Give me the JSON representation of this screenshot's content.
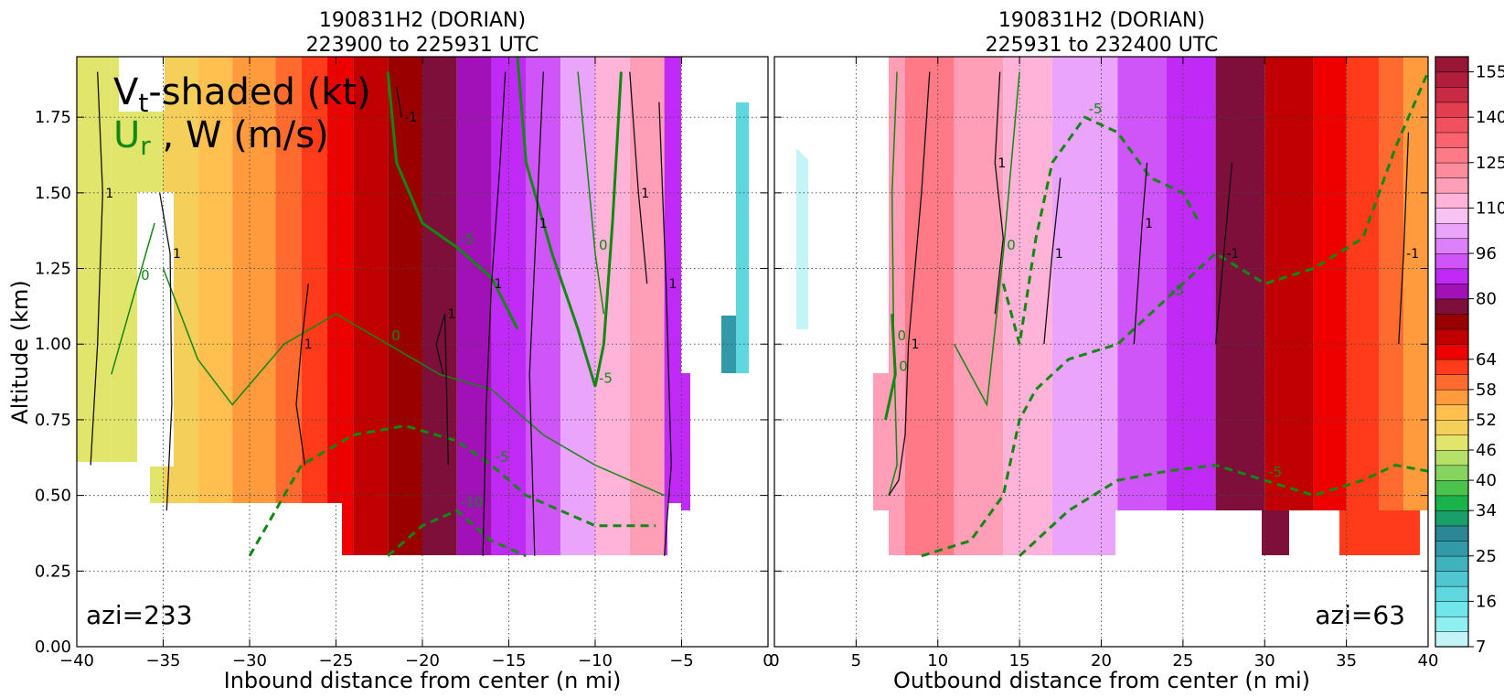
{
  "chart_data": [
    {
      "type": "heatmap",
      "panel": "left",
      "title_line1": "190831H2 (DORIAN)",
      "title_line2": "223900 to 225931 UTC",
      "xlabel": "Inbound distance from center (n mi)",
      "ylabel": "Altitude (km)",
      "xlim": [
        -40,
        0
      ],
      "ylim": [
        0,
        1.95
      ],
      "xticks": [
        "−40",
        "−35",
        "−30",
        "−25",
        "−20",
        "−15",
        "−10",
        "−5",
        "0"
      ],
      "xtick_values": [
        -40,
        -35,
        -30,
        -25,
        -20,
        -15,
        -10,
        -5,
        0
      ],
      "yticks": [
        "0.00",
        "0.25",
        "0.50",
        "0.75",
        "1.00",
        "1.25",
        "1.50",
        "1.75"
      ],
      "ytick_values": [
        0,
        0.25,
        0.5,
        0.75,
        1.0,
        1.25,
        1.5,
        1.75
      ],
      "grid": true,
      "legend_line1_main": "V",
      "legend_line1_sub": "t",
      "legend_line1_rest": "-shaded (kt)",
      "legend_line2_main": "U",
      "legend_line2_sub": "r",
      "legend_line2_rest": " , W (m/s)",
      "annotation": "azi=233",
      "vt_bands": [
        {
          "x0": -40,
          "x1": -38,
          "value": 46
        },
        {
          "x0": -38,
          "x1": -35,
          "value": 48
        },
        {
          "x0": -35,
          "x1": -33,
          "value": 50
        },
        {
          "x0": -33,
          "x1": -31,
          "value": 52
        },
        {
          "x0": -31,
          "x1": -28.5,
          "value": 55
        },
        {
          "x0": -28.5,
          "x1": -27,
          "value": 58
        },
        {
          "x0": -27,
          "x1": -25.5,
          "value": 61
        },
        {
          "x0": -25.5,
          "x1": -24,
          "value": 64
        },
        {
          "x0": -24,
          "x1": -22,
          "value": 68
        },
        {
          "x0": -22,
          "x1": -20,
          "value": 72
        },
        {
          "x0": -20,
          "x1": -18,
          "value": 76
        },
        {
          "x0": -18,
          "x1": -16,
          "value": 80
        },
        {
          "x0": -16,
          "x1": -14,
          "value": 84
        },
        {
          "x0": -14,
          "x1": -12,
          "value": 90
        },
        {
          "x0": -12,
          "x1": -10,
          "value": 100
        },
        {
          "x0": -10,
          "x1": -8,
          "value": 110
        },
        {
          "x0": -8,
          "x1": -6,
          "value": 118
        },
        {
          "x0": -6,
          "x1": -5,
          "value": 84
        }
      ],
      "w_contours": [
        {
          "value": 1,
          "points": [
            [
              -39.2,
              0.6
            ],
            [
              -38.8,
              1.0
            ],
            [
              -38.5,
              1.5
            ],
            [
              -38.8,
              1.9
            ]
          ]
        },
        {
          "value": 1,
          "points": [
            [
              -34.8,
              0.45
            ],
            [
              -34.5,
              0.8
            ],
            [
              -34.6,
              1.3
            ],
            [
              -35.2,
              1.5
            ]
          ]
        },
        {
          "value": 1,
          "points": [
            [
              -26.8,
              0.6
            ],
            [
              -27.3,
              0.8
            ],
            [
              -27.0,
              1.0
            ],
            [
              -26.6,
              1.2
            ]
          ]
        },
        {
          "value": 1,
          "points": [
            [
              -18.8,
              0.9
            ],
            [
              -19.2,
              1.0
            ],
            [
              -18.7,
              1.1
            ],
            [
              -18.5,
              0.6
            ]
          ]
        },
        {
          "value": 1,
          "points": [
            [
              -16.5,
              0.3
            ],
            [
              -16.3,
              0.8
            ],
            [
              -16.0,
              1.2
            ],
            [
              -15.5,
              1.6
            ],
            [
              -15.2,
              1.9
            ]
          ]
        },
        {
          "value": 1,
          "points": [
            [
              -13.5,
              0.3
            ],
            [
              -13.8,
              0.9
            ],
            [
              -13.4,
              1.4
            ],
            [
              -13.0,
              1.9
            ]
          ]
        },
        {
          "value": 1,
          "points": [
            [
              -7.0,
              1.2
            ],
            [
              -7.5,
              1.5
            ],
            [
              -8.0,
              1.9
            ]
          ]
        },
        {
          "value": 1,
          "points": [
            [
              -6.0,
              0.3
            ],
            [
              -5.6,
              0.6
            ],
            [
              -5.9,
              1.2
            ],
            [
              -6.3,
              1.8
            ]
          ]
        },
        {
          "value": -1,
          "points": [
            [
              -21.5,
              1.85
            ],
            [
              -21.2,
              1.75
            ]
          ]
        }
      ],
      "ur_contours": [
        {
          "value": 0,
          "style": "thin",
          "points": [
            [
              -38,
              0.9
            ],
            [
              -36.5,
              1.2
            ],
            [
              -35.5,
              1.4
            ]
          ]
        },
        {
          "value": 0,
          "style": "thin",
          "points": [
            [
              -35,
              1.25
            ],
            [
              -33,
              0.95
            ],
            [
              -31,
              0.8
            ],
            [
              -28,
              1.0
            ],
            [
              -25,
              1.1
            ],
            [
              -22,
              1.0
            ],
            [
              -19,
              0.9
            ],
            [
              -16,
              0.85
            ],
            [
              -13,
              0.7
            ],
            [
              -10,
              0.6
            ],
            [
              -6,
              0.5
            ]
          ]
        },
        {
          "value": 0,
          "style": "thin",
          "points": [
            [
              -11,
              1.9
            ],
            [
              -10.5,
              1.6
            ],
            [
              -10,
              1.3
            ],
            [
              -9.5,
              1.1
            ]
          ]
        },
        {
          "value": -5,
          "style": "thick",
          "points": [
            [
              -22,
              1.9
            ],
            [
              -21.5,
              1.6
            ],
            [
              -20,
              1.4
            ],
            [
              -18,
              1.32
            ],
            [
              -16,
              1.22
            ],
            [
              -14.5,
              1.05
            ]
          ]
        },
        {
          "value": -5,
          "style": "thick",
          "points": [
            [
              -14.5,
              1.95
            ],
            [
              -14,
              1.6
            ],
            [
              -12.5,
              1.3
            ],
            [
              -11,
              1.05
            ],
            [
              -10,
              0.86
            ],
            [
              -9.5,
              1.0
            ],
            [
              -9,
              1.4
            ],
            [
              -8.5,
              1.9
            ]
          ]
        },
        {
          "value": -5,
          "style": "dashed",
          "points": [
            [
              -30,
              0.3
            ],
            [
              -27,
              0.6
            ],
            [
              -24,
              0.7
            ],
            [
              -21,
              0.73
            ],
            [
              -18,
              0.68
            ],
            [
              -16,
              0.6
            ],
            [
              -14,
              0.5
            ],
            [
              -12,
              0.45
            ],
            [
              -10,
              0.4
            ],
            [
              -6.5,
              0.4
            ]
          ]
        },
        {
          "value": -10,
          "style": "dashed",
          "points": [
            [
              -22,
              0.3
            ],
            [
              -20,
              0.4
            ],
            [
              -18,
              0.45
            ],
            [
              -16,
              0.35
            ],
            [
              -14,
              0.3
            ]
          ]
        }
      ]
    },
    {
      "type": "heatmap",
      "panel": "right",
      "title_line1": "190831H2 (DORIAN)",
      "title_line2": "225931 to 232400 UTC",
      "xlabel": "Outbound distance from center (n mi)",
      "xlim": [
        0,
        40
      ],
      "ylim": [
        0,
        1.95
      ],
      "xticks": [
        "0",
        "5",
        "10",
        "15",
        "20",
        "25",
        "30",
        "35",
        "40"
      ],
      "xtick_values": [
        0,
        5,
        10,
        15,
        20,
        25,
        30,
        35,
        40
      ],
      "grid": true,
      "annotation": "azi=63",
      "vt_bands": [
        {
          "x0": 6.5,
          "x1": 8,
          "value": 118
        },
        {
          "x0": 8,
          "x1": 11,
          "value": 125
        },
        {
          "x0": 11,
          "x1": 14,
          "value": 118
        },
        {
          "x0": 14,
          "x1": 17,
          "value": 110
        },
        {
          "x0": 17,
          "x1": 21,
          "value": 100
        },
        {
          "x0": 21,
          "x1": 24,
          "value": 90
        },
        {
          "x0": 24,
          "x1": 27,
          "value": 84
        },
        {
          "x0": 27,
          "x1": 30,
          "value": 76
        },
        {
          "x0": 30,
          "x1": 33,
          "value": 68
        },
        {
          "x0": 33,
          "x1": 35,
          "value": 64
        },
        {
          "x0": 35,
          "x1": 37,
          "value": 61
        },
        {
          "x0": 37,
          "x1": 38.5,
          "value": 58
        },
        {
          "x0": 38.5,
          "x1": 40,
          "value": 55
        }
      ],
      "w_contours": [
        {
          "value": 1,
          "points": [
            [
              7.0,
              0.5
            ],
            [
              7.6,
              0.55
            ],
            [
              8.0,
              0.7
            ],
            [
              8.2,
              1.0
            ],
            [
              9.0,
              1.5
            ],
            [
              9.5,
              1.9
            ]
          ]
        },
        {
          "value": 1,
          "points": [
            [
              13.5,
              1.1
            ],
            [
              14.0,
              1.35
            ],
            [
              13.5,
              1.6
            ],
            [
              13.8,
              1.9
            ]
          ]
        },
        {
          "value": 1,
          "points": [
            [
              16.5,
              1.0
            ],
            [
              17.0,
              1.3
            ],
            [
              17.5,
              1.55
            ]
          ]
        },
        {
          "value": 1,
          "points": [
            [
              22.0,
              1.0
            ],
            [
              22.5,
              1.4
            ],
            [
              22.8,
              1.6
            ]
          ]
        },
        {
          "value": -1,
          "points": [
            [
              27.0,
              1.0
            ],
            [
              27.5,
              1.3
            ],
            [
              28.0,
              1.6
            ]
          ]
        },
        {
          "value": -1,
          "points": [
            [
              38.2,
              1.0
            ],
            [
              38.5,
              1.3
            ],
            [
              38.8,
              1.7
            ]
          ]
        }
      ],
      "ur_contours": [
        {
          "value": 0,
          "style": "thin",
          "points": [
            [
              7.5,
              1.9
            ],
            [
              7.2,
              1.5
            ],
            [
              7.3,
              1.0
            ],
            [
              7.5,
              0.6
            ],
            [
              7.0,
              0.5
            ]
          ]
        },
        {
          "value": 0,
          "style": "thin",
          "points": [
            [
              11,
              1.0
            ],
            [
              13,
              0.8
            ],
            [
              14,
              1.3
            ],
            [
              15,
              1.9
            ]
          ]
        },
        {
          "value": 0,
          "style": "thick",
          "points": [
            [
              6.8,
              0.75
            ],
            [
              7.4,
              0.9
            ],
            [
              7.2,
              1.1
            ]
          ]
        },
        {
          "value": -5,
          "style": "dashed",
          "points": [
            [
              9,
              0.3
            ],
            [
              12,
              0.35
            ],
            [
              14,
              0.5
            ],
            [
              15,
              0.75
            ],
            [
              16,
              0.85
            ],
            [
              18,
              0.95
            ],
            [
              21,
              1.0
            ],
            [
              24,
              1.15
            ],
            [
              27,
              1.3
            ],
            [
              30,
              1.2
            ],
            [
              33,
              1.25
            ],
            [
              36,
              1.35
            ],
            [
              38,
              1.65
            ],
            [
              40,
              1.9
            ]
          ]
        },
        {
          "value": -5,
          "style": "dashed",
          "points": [
            [
              14,
              1.2
            ],
            [
              15,
              1.0
            ],
            [
              16,
              1.35
            ],
            [
              17,
              1.6
            ],
            [
              19,
              1.75
            ],
            [
              21,
              1.7
            ],
            [
              23,
              1.55
            ],
            [
              25,
              1.5
            ],
            [
              26,
              1.4
            ]
          ]
        },
        {
          "value": -5,
          "style": "dashed",
          "points": [
            [
              15,
              0.3
            ],
            [
              18,
              0.45
            ],
            [
              21,
              0.55
            ],
            [
              24,
              0.58
            ],
            [
              27,
              0.6
            ],
            [
              30,
              0.55
            ],
            [
              33,
              0.5
            ],
            [
              36,
              0.55
            ],
            [
              38,
              0.6
            ],
            [
              40,
              0.58
            ]
          ]
        }
      ]
    }
  ],
  "colorbar": {
    "tick_labels": [
      "155",
      "140",
      "125",
      "110",
      "96",
      "80",
      "64",
      "58",
      "52",
      "46",
      "40",
      "34",
      "25",
      "16",
      "7"
    ],
    "levels": [
      7,
      10,
      13,
      16,
      19,
      22,
      25,
      28,
      31,
      34,
      37,
      40,
      43,
      46,
      49,
      52,
      55,
      58,
      61,
      64,
      68,
      72,
      76,
      80,
      84,
      90,
      96,
      100,
      105,
      110,
      115,
      120,
      125,
      130,
      135,
      140,
      145,
      150,
      155,
      160
    ],
    "colors": [
      "#c3f4f7",
      "#8ef0f0",
      "#6ee6ea",
      "#5fd7df",
      "#4fc6d0",
      "#40b2be",
      "#3299a8",
      "#2a8793",
      "#1a9e6a",
      "#19b34a",
      "#4cc44c",
      "#86d45f",
      "#b6e06a",
      "#e2e56b",
      "#f4d05a",
      "#ffc050",
      "#ff9b3c",
      "#ff6b2e",
      "#ff3b1a",
      "#ee0000",
      "#c00000",
      "#990000",
      "#7d0f3a",
      "#a012b5",
      "#bf2bf5",
      "#cf55f8",
      "#dd80fb",
      "#eaa4fb",
      "#f8c2f2",
      "#ffb3d8",
      "#ff9eb6",
      "#ff8c9c",
      "#ff7a86",
      "#fb6270",
      "#f2505e",
      "#e23e50",
      "#c82a44",
      "#b01e3c",
      "#9a1636"
    ]
  }
}
